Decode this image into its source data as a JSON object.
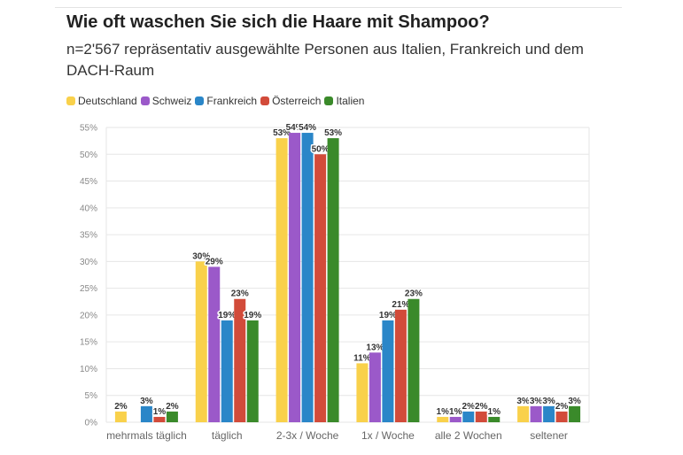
{
  "chart_data": {
    "type": "bar",
    "title": "Wie oft waschen Sie sich die Haare mit Shampoo?",
    "subtitle": "n=2'567 repräsentativ ausgewählte Personen aus Italien, Frankreich und dem DACH-Raum",
    "categories": [
      "mehrmals täglich",
      "täglich",
      "2-3x / Woche",
      "1x / Woche",
      "alle 2 Wochen",
      "seltener"
    ],
    "series": [
      {
        "name": "Deutschland",
        "color": "#f9d14b",
        "values": [
          2,
          30,
          53,
          11,
          1,
          3
        ]
      },
      {
        "name": "Schweiz",
        "color": "#9b59c9",
        "values": [
          null,
          29,
          54,
          13,
          1,
          3
        ]
      },
      {
        "name": "Frankreich",
        "color": "#2a86c8",
        "values": [
          3,
          19,
          54,
          19,
          2,
          3
        ]
      },
      {
        "name": "Österreich",
        "color": "#d24b3a",
        "values": [
          1,
          23,
          50,
          21,
          2,
          2
        ]
      },
      {
        "name": "Italien",
        "color": "#3a8a2a",
        "values": [
          2,
          19,
          53,
          23,
          1,
          3
        ]
      }
    ],
    "ylim": [
      0,
      55
    ],
    "yticks": [
      "0%",
      "5%",
      "10%",
      "15%",
      "20%",
      "25%",
      "30%",
      "35%",
      "40%",
      "45%",
      "50%",
      "55%"
    ],
    "value_suffix": "%",
    "grid": true,
    "legend_position": "top-left"
  }
}
